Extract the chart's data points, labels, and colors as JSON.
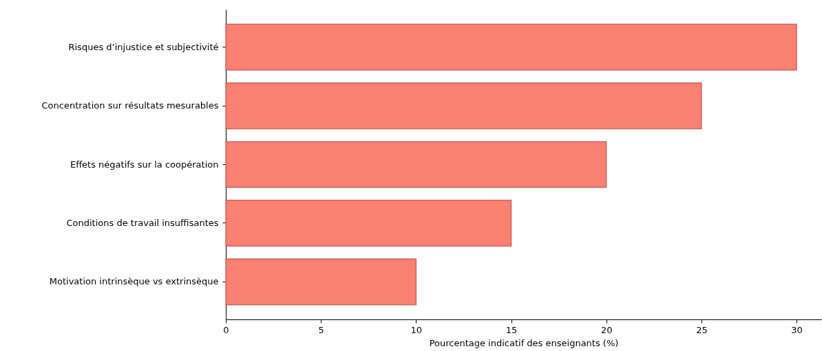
{
  "chart_data": {
    "type": "bar",
    "orientation": "horizontal",
    "xlabel": "Pourcentage indicatif des enseignants (%)",
    "categories": [
      "Risques d’injustice et subjectivité",
      "Concentration sur résultats mesurables",
      "Effets négatifs sur la coopération",
      "Conditions de travail insuffisantes",
      "Motivation intrinsèque vs extrinsèque"
    ],
    "values": [
      30,
      25,
      20,
      15,
      10
    ],
    "color": "#fa8072",
    "xlim": [
      0,
      31.3
    ],
    "xticks": [
      0,
      5,
      10,
      15,
      20,
      25,
      30
    ],
    "grid": false
  }
}
